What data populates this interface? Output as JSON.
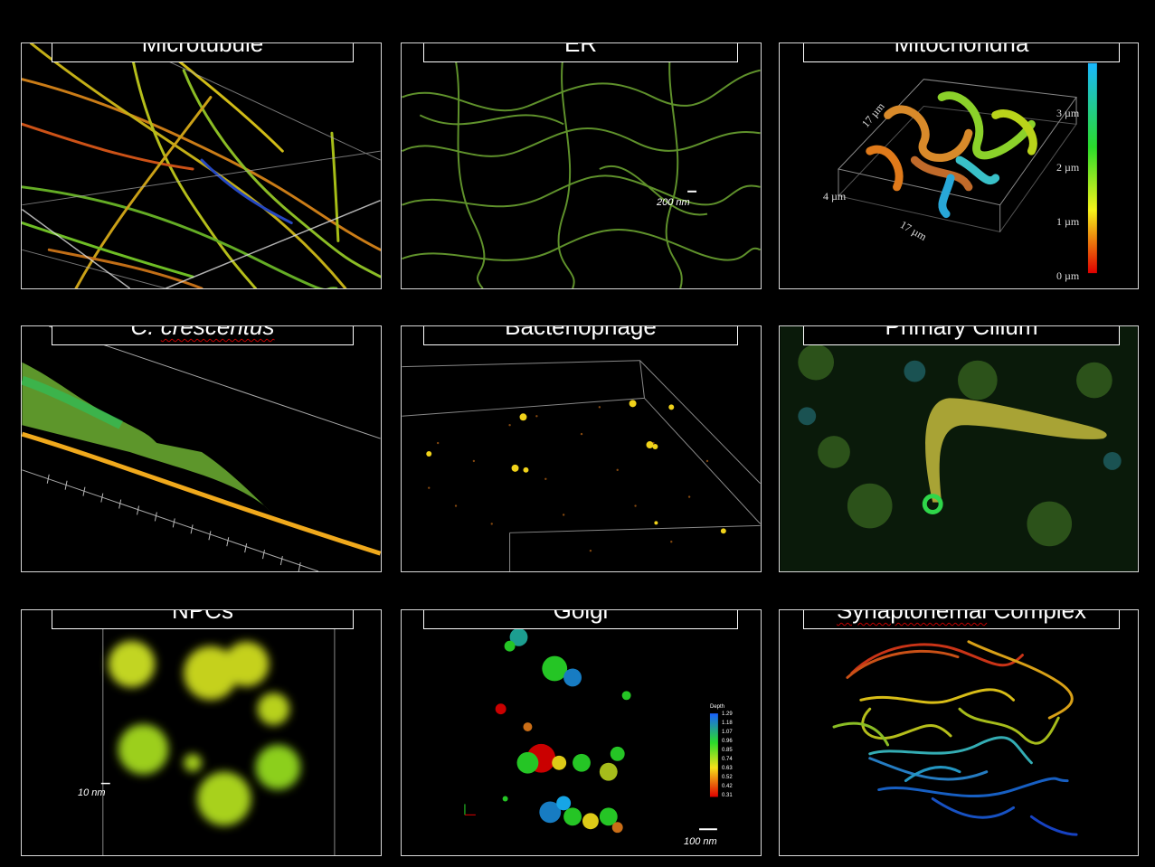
{
  "panels": [
    {
      "title": "Microtubule"
    },
    {
      "title": "ER",
      "scale_bar": "200 nm"
    },
    {
      "title": "Mitochondria",
      "colorbar_ticks": [
        "3 µm",
        "2 µm",
        "1 µm",
        "0 µm"
      ],
      "dims": {
        "depth": "4 µm",
        "side_a": "17 µm",
        "side_b": "17 µm"
      }
    },
    {
      "title": "C. crescentus"
    },
    {
      "title": "Bacteriophage"
    },
    {
      "title": "Primary Cilium"
    },
    {
      "title": "NPCs",
      "scale_bar": "10 nm"
    },
    {
      "title": "Golgi",
      "scale_bar": "100 nm",
      "colorbar_title": "Depth",
      "colorbar_ticks": [
        "1.29",
        "1.18",
        "1.07",
        "0.96",
        "0.85",
        "0.74",
        "0.63",
        "0.52",
        "0.42",
        "0.31"
      ]
    },
    {
      "title": "Synaptonemal Complex"
    }
  ],
  "colors": {
    "background": "#000000",
    "panel_border": "#d9d9d9",
    "spellcheck_underline": "#c00000"
  }
}
